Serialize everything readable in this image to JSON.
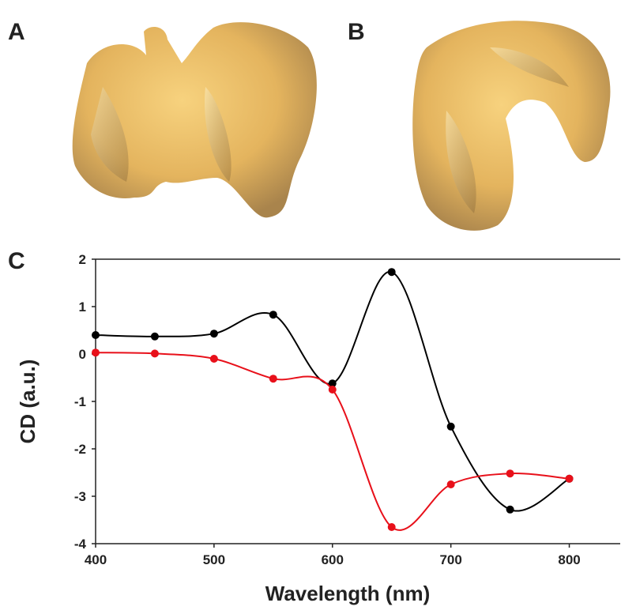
{
  "panels": {
    "a": "A",
    "b": "B"
  },
  "chart_data": {
    "type": "line",
    "panel_label": "C",
    "x_label": "Wavelength (nm)",
    "y_label": "CD (a.u.)",
    "x": [
      400,
      450,
      500,
      550,
      600,
      650,
      700,
      750,
      800
    ],
    "series": [
      {
        "color": "#000000",
        "values": [
          0.4,
          0.37,
          0.43,
          0.83,
          -0.62,
          1.73,
          -1.53,
          -3.28,
          -2.63
        ]
      },
      {
        "color": "#e8101a",
        "values": [
          0.03,
          0.01,
          -0.1,
          -0.52,
          -0.75,
          -3.65,
          -2.75,
          -2.52,
          -2.63
        ]
      }
    ],
    "xlim": [
      400,
      843
    ],
    "ylim": [
      -4,
      2
    ],
    "xticks": [
      400,
      500,
      600,
      700,
      800
    ],
    "yticks": [
      -4,
      -3,
      -2,
      -1,
      0,
      1,
      2
    ]
  }
}
